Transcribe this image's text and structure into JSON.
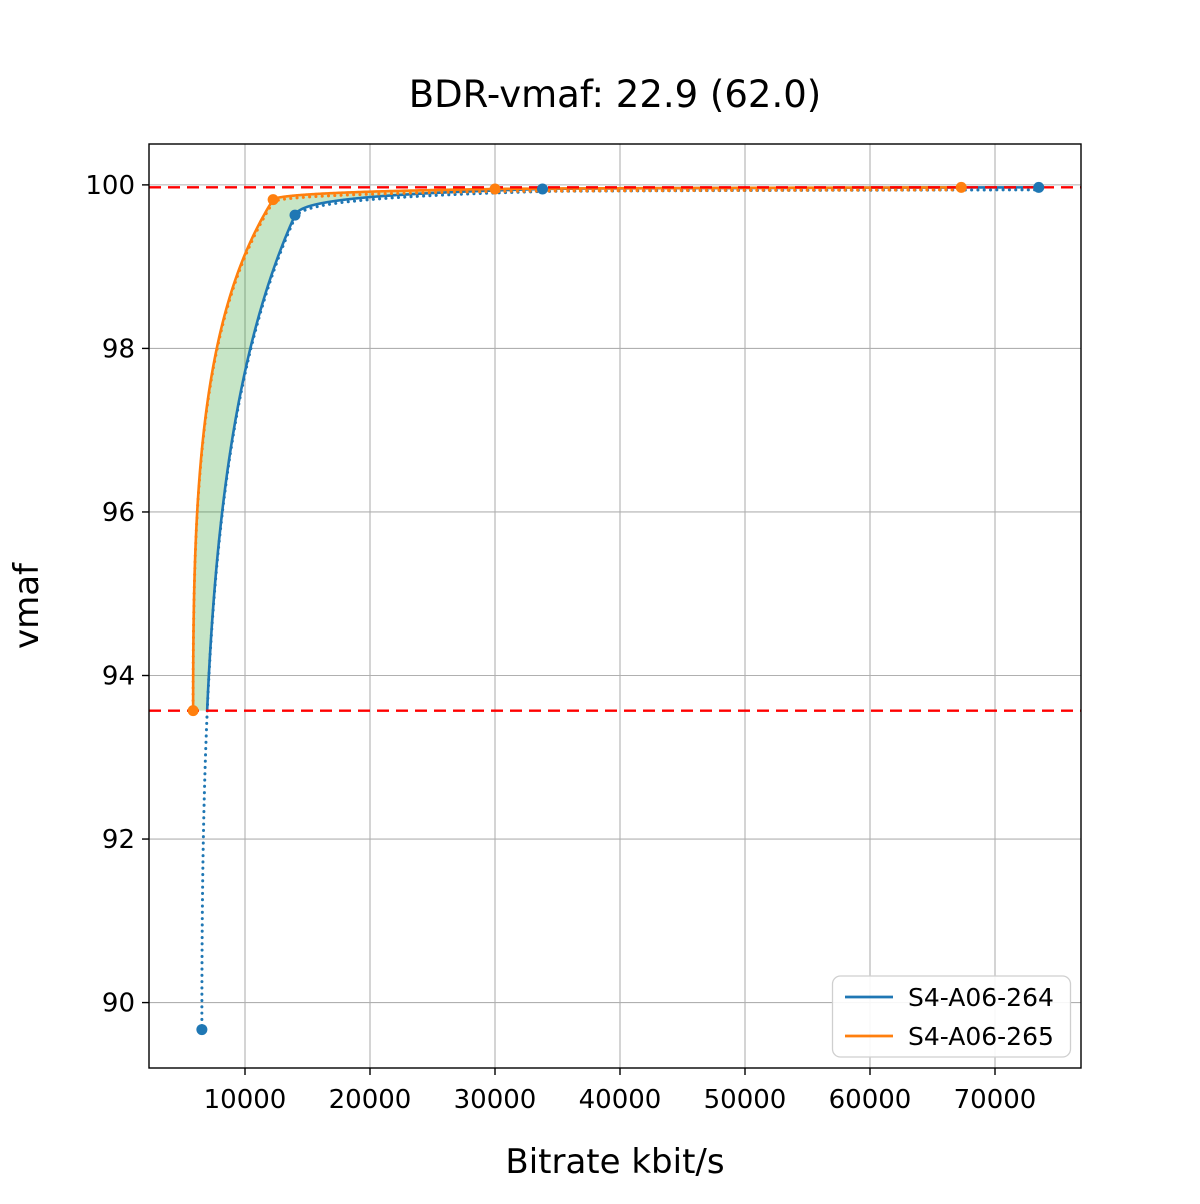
{
  "chart_data": {
    "type": "line",
    "title": "BDR-vmaf: 22.9 (62.0)",
    "xlabel": "Bitrate kbit/s",
    "ylabel": "vmaf",
    "xlim": [
      2320,
      76880
    ],
    "ylim": [
      89.2,
      100.5
    ],
    "xticks": [
      10000,
      20000,
      30000,
      40000,
      50000,
      60000,
      70000
    ],
    "yticks": [
      90,
      92,
      94,
      96,
      98,
      100
    ],
    "grid": true,
    "bd_bounds": {
      "lower_vmaf": 93.57,
      "upper_vmaf": 99.97
    },
    "bound_line_color": "#ff0000",
    "fill_between_color": "rgba(44,160,44,0.27)",
    "grid_color": "#b0b0b0",
    "legend": {
      "position": "lower right"
    },
    "series": [
      {
        "name": "S4-A06-264",
        "color": "#1f77b4",
        "points": [
          [
            6550,
            89.67
          ],
          [
            14000,
            99.63
          ],
          [
            33800,
            99.95
          ],
          [
            73500,
            99.97
          ]
        ]
      },
      {
        "name": "S4-A06-265",
        "color": "#ff7f0e",
        "points": [
          [
            5850,
            93.57
          ],
          [
            12250,
            99.82
          ],
          [
            30000,
            99.95
          ],
          [
            67300,
            99.97
          ]
        ]
      }
    ]
  }
}
